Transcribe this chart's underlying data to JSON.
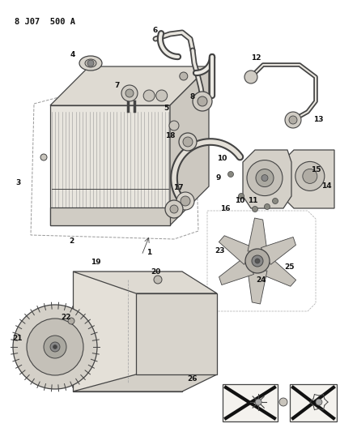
{
  "title": "8 J07  500 A",
  "bg_color": "#ffffff",
  "fig_width": 4.2,
  "fig_height": 5.33,
  "dpi": 100,
  "line_color": "#333333"
}
